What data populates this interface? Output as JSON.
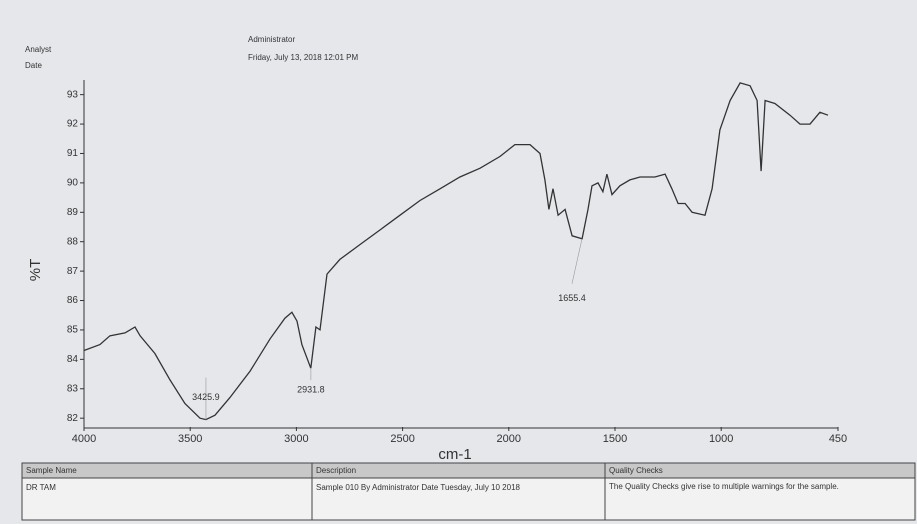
{
  "header": {
    "analyst_label": "Analyst",
    "date_label": "Date",
    "analyst": "Administrator",
    "date": "Friday, July 13, 2018 12:01 PM"
  },
  "chart_data": {
    "type": "line",
    "ylabel": "%T",
    "xlabel": "cm-1",
    "color": "#333333",
    "x": [
      4000,
      3925,
      3878,
      3807,
      3760,
      3736,
      3666,
      3595,
      3525,
      3454,
      3426,
      3383,
      3313,
      3218,
      3124,
      3054,
      3021,
      2997,
      2974,
      2932,
      2908,
      2889,
      2856,
      2795,
      2701,
      2606,
      2512,
      2418,
      2324,
      2230,
      2135,
      2041,
      1971,
      1900,
      1853,
      1830,
      1811,
      1792,
      1768,
      1735,
      1702,
      1655,
      1627,
      1608,
      1580,
      1557,
      1538,
      1514,
      1477,
      1430,
      1382,
      1312,
      1264,
      1232,
      1203,
      1170,
      1137,
      1076,
      1043,
      1006,
      958,
      911,
      864,
      831,
      812,
      793,
      747,
      676,
      629,
      582,
      535,
      497
    ],
    "values": [
      84.3,
      84.5,
      84.8,
      84.9,
      85.1,
      84.8,
      84.2,
      83.3,
      82.5,
      82.0,
      81.95,
      82.1,
      82.7,
      83.6,
      84.7,
      85.4,
      85.6,
      85.3,
      84.5,
      83.7,
      85.1,
      85.0,
      86.9,
      87.4,
      87.9,
      88.4,
      88.9,
      89.4,
      89.8,
      90.2,
      90.5,
      90.9,
      91.3,
      91.3,
      91.0,
      90.1,
      89.1,
      89.8,
      88.9,
      89.1,
      88.2,
      88.1,
      89.1,
      89.9,
      90.0,
      89.7,
      90.3,
      89.6,
      89.9,
      90.1,
      90.2,
      90.2,
      90.3,
      89.8,
      89.3,
      89.3,
      89.0,
      88.9,
      89.8,
      91.8,
      92.8,
      93.4,
      93.3,
      92.8,
      90.4,
      92.8,
      92.7,
      92.3,
      92.0,
      92.0,
      92.4,
      92.3
    ],
    "xlim": [
      4000,
      450
    ],
    "xticks": [
      4000,
      3500,
      3000,
      2500,
      2000,
      1500,
      1000,
      450
    ],
    "ylim": [
      81.7,
      93.6
    ],
    "yticks": [
      82,
      83,
      84,
      85,
      86,
      87,
      88,
      89,
      90,
      91,
      92,
      93
    ],
    "annotations": [
      {
        "text": "3425.9",
        "x": 3425.9
      },
      {
        "text": "2931.8",
        "x": 2931.8
      },
      {
        "text": "1655.4",
        "x": 1655.4
      }
    ]
  },
  "table": {
    "headers": [
      "Sample Name",
      "Description",
      "Quality Checks"
    ],
    "rows": [
      [
        "DR TAM",
        "Sample 010 By Administrator Date Tuesday, July 10 2018",
        "The Quality Checks give rise to multiple warnings for the sample."
      ]
    ]
  }
}
